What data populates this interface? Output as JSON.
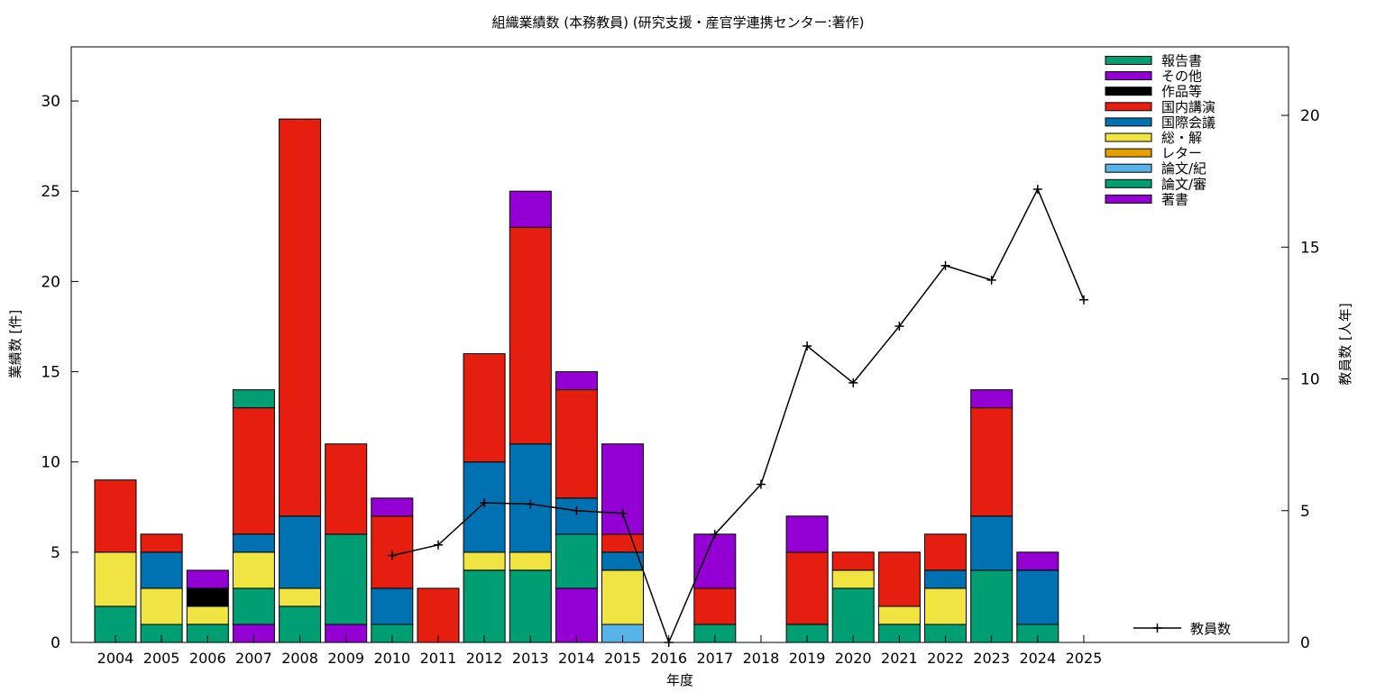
{
  "chart_data": {
    "type": "bar",
    "title": "組織業績数 (本務教員) (研究支援・産官学連携センター:著作)",
    "xlabel": "年度",
    "ylabel": "業績数 [件]",
    "y2label": "教員数 [人年]",
    "ylim": [
      0,
      33
    ],
    "y2lim": [
      0,
      22.6
    ],
    "yticks": [
      0,
      5,
      10,
      15,
      20,
      25,
      30
    ],
    "y2ticks": [
      0,
      5,
      10,
      15,
      20
    ],
    "grid": false,
    "legend_position": "top-right",
    "categories": [
      "2004",
      "2005",
      "2006",
      "2007",
      "2008",
      "2009",
      "2010",
      "2011",
      "2012",
      "2013",
      "2014",
      "2015",
      "2016",
      "2017",
      "2018",
      "2019",
      "2020",
      "2021",
      "2022",
      "2023",
      "2024",
      "2025"
    ],
    "series": [
      {
        "name": "著書",
        "color": "#9400d3",
        "values": [
          0,
          0,
          0,
          1,
          0,
          1,
          0,
          0,
          0,
          0,
          3,
          0,
          0,
          0,
          0,
          0,
          0,
          0,
          0,
          0,
          0,
          0
        ]
      },
      {
        "name": "論文/審",
        "color": "#009e73",
        "values": [
          2,
          1,
          1,
          2,
          2,
          5,
          1,
          0,
          4,
          4,
          3,
          0,
          0,
          1,
          0,
          1,
          3,
          1,
          1,
          4,
          1,
          0
        ]
      },
      {
        "name": "論文/紀",
        "color": "#56b4e9",
        "values": [
          0,
          0,
          0,
          0,
          0,
          0,
          0,
          0,
          0,
          0,
          0,
          1,
          0,
          0,
          0,
          0,
          0,
          0,
          0,
          0,
          0,
          0
        ]
      },
      {
        "name": "レター",
        "color": "#e69f00",
        "values": [
          0,
          0,
          0,
          0,
          0,
          0,
          0,
          0,
          0,
          0,
          0,
          0,
          0,
          0,
          0,
          0,
          0,
          0,
          0,
          0,
          0,
          0
        ]
      },
      {
        "name": "総・解",
        "color": "#f0e442",
        "values": [
          3,
          2,
          1,
          2,
          1,
          0,
          0,
          0,
          1,
          1,
          0,
          3,
          0,
          0,
          0,
          0,
          1,
          1,
          2,
          0,
          0,
          0
        ]
      },
      {
        "name": "国際会議",
        "color": "#0072b2",
        "values": [
          0,
          2,
          0,
          1,
          4,
          0,
          2,
          0,
          5,
          6,
          2,
          1,
          0,
          0,
          0,
          0,
          0,
          0,
          1,
          3,
          3,
          0
        ]
      },
      {
        "name": "国内講演",
        "color": "#e51e10",
        "values": [
          4,
          1,
          0,
          7,
          22,
          5,
          4,
          3,
          6,
          12,
          6,
          1,
          0,
          2,
          0,
          4,
          1,
          3,
          2,
          6,
          0,
          0
        ]
      },
      {
        "name": "作品等",
        "color": "#000000",
        "values": [
          0,
          0,
          1,
          0,
          0,
          0,
          0,
          0,
          0,
          0,
          0,
          0,
          0,
          0,
          0,
          0,
          0,
          0,
          0,
          0,
          0,
          0
        ]
      },
      {
        "name": "その他",
        "color": "#9400d3",
        "values": [
          0,
          0,
          1,
          0,
          0,
          0,
          1,
          0,
          0,
          2,
          1,
          5,
          0,
          3,
          0,
          2,
          0,
          0,
          0,
          1,
          1,
          0
        ]
      },
      {
        "name": "報告書",
        "color": "#009e73",
        "values": [
          0,
          0,
          0,
          1,
          0,
          0,
          0,
          0,
          0,
          0,
          0,
          0,
          0,
          0,
          0,
          0,
          0,
          0,
          0,
          0,
          0,
          0
        ]
      }
    ],
    "line_series": {
      "name": "教員数",
      "color": "#000000",
      "axis": "y2",
      "values": [
        null,
        null,
        null,
        null,
        null,
        null,
        3.3,
        3.7,
        5.3,
        5.25,
        5.0,
        4.9,
        0,
        4.1,
        6.0,
        11.25,
        9.85,
        12.0,
        14.3,
        13.75,
        17.2,
        13.0
      ]
    }
  }
}
